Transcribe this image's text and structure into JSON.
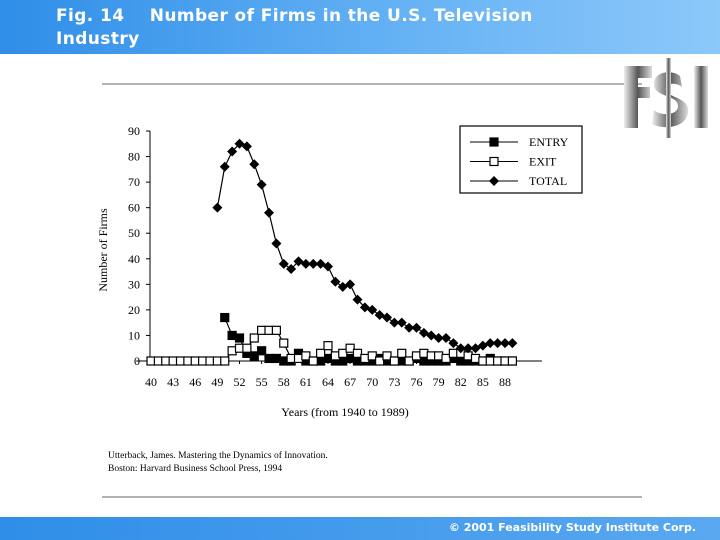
{
  "header": {
    "title": "Fig. 14    Number of Firms in the U.S. Television Industry"
  },
  "chart_data": {
    "type": "line",
    "x_label": "Years (from 1940 to 1989)",
    "y_label": "Number of Firms",
    "x": [
      40,
      41,
      42,
      43,
      44,
      45,
      46,
      47,
      48,
      49,
      50,
      51,
      52,
      53,
      54,
      55,
      56,
      57,
      58,
      59,
      60,
      61,
      62,
      63,
      64,
      65,
      66,
      67,
      68,
      69,
      70,
      71,
      72,
      73,
      74,
      75,
      76,
      77,
      78,
      79,
      80,
      81,
      82,
      83,
      84,
      85,
      86,
      87,
      88,
      89
    ],
    "xlim": [
      38,
      93
    ],
    "xticks": [
      40,
      43,
      46,
      49,
      52,
      55,
      58,
      61,
      64,
      67,
      70,
      73,
      76,
      79,
      82,
      85,
      88
    ],
    "ylim": [
      0,
      90
    ],
    "yticks": [
      0,
      10,
      20,
      30,
      40,
      50,
      60,
      70,
      80,
      90
    ],
    "legend": "top-right",
    "series": [
      {
        "name": "ENTRY",
        "color": "#000000",
        "marker": "filled-square",
        "values": [
          null,
          null,
          null,
          null,
          null,
          null,
          null,
          null,
          null,
          null,
          17,
          10,
          9,
          3,
          2,
          4,
          1,
          1,
          0,
          0,
          3,
          0,
          0,
          0,
          1,
          0,
          0,
          1,
          0,
          0,
          0,
          1,
          0,
          0,
          0,
          0,
          1,
          0,
          0,
          0,
          0,
          1,
          0,
          0,
          0,
          0,
          1,
          0,
          0,
          0
        ]
      },
      {
        "name": "EXIT",
        "color": "#000000",
        "marker": "open-square",
        "values": [
          0,
          0,
          0,
          0,
          0,
          0,
          0,
          0,
          0,
          0,
          0,
          4,
          5,
          5,
          9,
          12,
          12,
          12,
          7,
          1,
          1,
          2,
          0,
          3,
          6,
          2,
          3,
          5,
          3,
          1,
          2,
          0,
          2,
          0,
          3,
          0,
          2,
          3,
          2,
          2,
          1,
          3,
          3,
          2,
          1,
          0,
          0,
          0,
          0,
          0
        ]
      },
      {
        "name": "TOTAL",
        "color": "#000000",
        "marker": "diamond",
        "values": [
          null,
          null,
          null,
          null,
          null,
          null,
          null,
          null,
          null,
          60,
          76,
          82,
          85,
          84,
          77,
          69,
          58,
          46,
          38,
          36,
          39,
          38,
          38,
          38,
          37,
          31,
          29,
          30,
          24,
          21,
          20,
          18,
          17,
          15,
          15,
          13,
          13,
          11,
          10,
          9,
          9,
          7,
          5,
          5,
          5,
          6,
          7,
          7,
          7,
          7
        ]
      }
    ]
  },
  "source": [
    "Utterback, James.  Mastering the Dynamics of Innovation.",
    "Boston: Harvard Business School Press, 1994"
  ],
  "footer": "© 2001 Feasibility Study Institute Corp."
}
